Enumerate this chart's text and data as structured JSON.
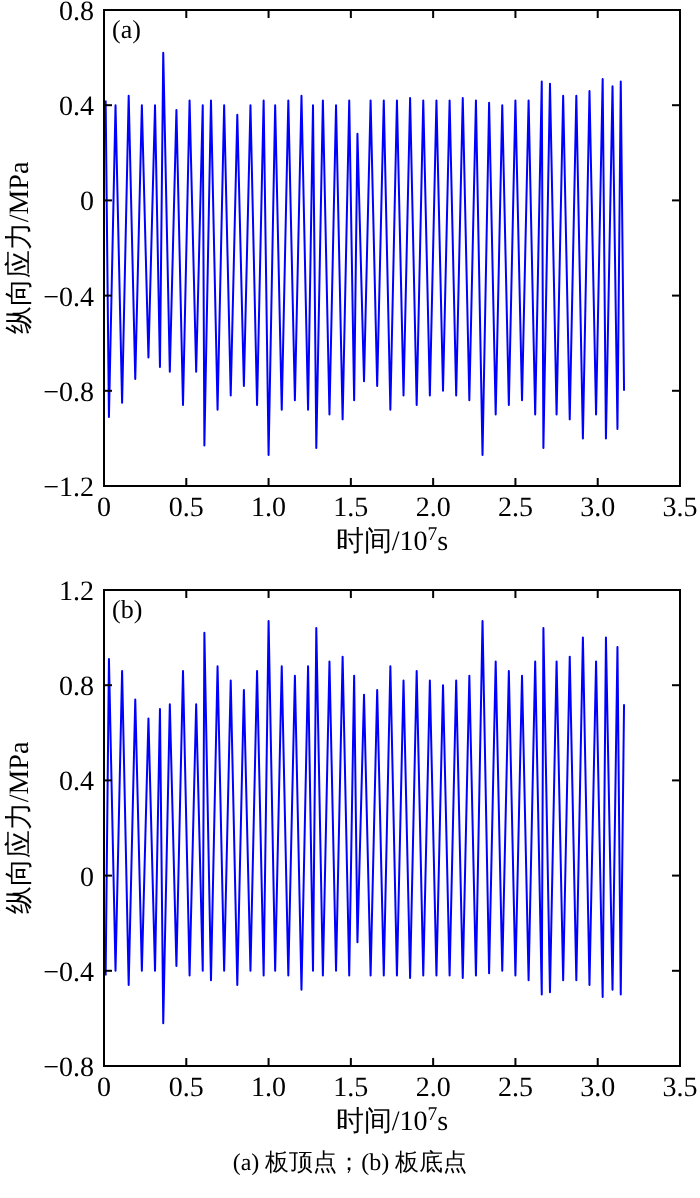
{
  "chart_data": [
    {
      "type": "line",
      "title": "(a)",
      "xlabel": "时间/10$^{7}$s",
      "ylabel": "纵向应力/MPa",
      "xlim": [
        0,
        3.5
      ],
      "xticks": [
        0,
        0.5,
        {
          "value": 1,
          "label": "1.0"
        },
        1.5,
        {
          "value": 2,
          "label": "2.0"
        },
        2.5,
        {
          "value": 3,
          "label": "3.0"
        },
        3.5
      ],
      "ylim": [
        -1.2,
        0.8
      ],
      "yticks": [
        {
          "value": -1.2,
          "label": "−1.2"
        },
        {
          "value": -0.8,
          "label": "−0.8"
        },
        {
          "value": -0.4,
          "label": "−0.4"
        },
        0,
        0.4,
        0.8
      ],
      "grid": false,
      "series": [
        {
          "color": "#0000ff",
          "x": [
            0.01,
            0.03,
            0.07,
            0.11,
            0.15,
            0.19,
            0.23,
            0.27,
            0.31,
            0.34,
            0.36,
            0.4,
            0.44,
            0.48,
            0.52,
            0.56,
            0.6,
            0.61,
            0.65,
            0.69,
            0.73,
            0.77,
            0.81,
            0.85,
            0.89,
            0.93,
            0.97,
            1.0,
            1.04,
            1.08,
            1.12,
            1.16,
            1.2,
            1.24,
            1.27,
            1.29,
            1.33,
            1.37,
            1.41,
            1.45,
            1.49,
            1.52,
            1.54,
            1.58,
            1.62,
            1.66,
            1.7,
            1.74,
            1.78,
            1.82,
            1.86,
            1.9,
            1.94,
            1.98,
            2.02,
            2.06,
            2.1,
            2.14,
            2.18,
            2.22,
            2.26,
            2.3,
            2.34,
            2.38,
            2.42,
            2.46,
            2.5,
            2.54,
            2.58,
            2.62,
            2.66,
            2.67,
            2.71,
            2.75,
            2.79,
            2.83,
            2.87,
            2.91,
            2.95,
            2.99,
            3.03,
            3.05,
            3.09,
            3.12,
            3.14,
            3.16
          ],
          "values": [
            0.42,
            -0.91,
            0.4,
            -0.85,
            0.44,
            -0.75,
            0.4,
            -0.66,
            0.4,
            -0.7,
            0.62,
            -0.72,
            0.38,
            -0.86,
            0.42,
            -0.72,
            0.4,
            -1.03,
            0.42,
            -0.88,
            0.4,
            -0.82,
            0.36,
            -0.78,
            0.4,
            -0.86,
            0.42,
            -1.07,
            0.4,
            -0.88,
            0.42,
            -0.84,
            0.44,
            -0.88,
            0.4,
            -1.04,
            0.42,
            -0.9,
            0.4,
            -0.92,
            0.42,
            -0.84,
            0.28,
            -0.76,
            0.42,
            -0.78,
            0.42,
            -0.88,
            0.42,
            -0.82,
            0.43,
            -0.86,
            0.42,
            -0.82,
            0.42,
            -0.8,
            0.42,
            -0.82,
            0.43,
            -0.84,
            0.42,
            -1.07,
            0.41,
            -0.9,
            0.4,
            -0.86,
            0.42,
            -0.84,
            0.42,
            -0.9,
            0.5,
            -1.04,
            0.49,
            -0.9,
            0.44,
            -0.92,
            0.44,
            -1.0,
            0.46,
            -0.9,
            0.51,
            -1.0,
            0.48,
            -0.96,
            0.5,
            -0.8
          ]
        }
      ]
    },
    {
      "type": "line",
      "title": "(b)",
      "xlabel": "时间/10$^{7}$s",
      "ylabel": "纵向应力/MPa",
      "xlim": [
        0,
        3.5
      ],
      "xticks": [
        0,
        0.5,
        {
          "value": 1,
          "label": "1.0"
        },
        1.5,
        {
          "value": 2,
          "label": "2.0"
        },
        2.5,
        {
          "value": 3,
          "label": "3.0"
        },
        3.5
      ],
      "ylim": [
        -0.8,
        1.2
      ],
      "yticks": [
        {
          "value": -0.8,
          "label": "−0.8"
        },
        {
          "value": -0.4,
          "label": "−0.4"
        },
        0,
        0.4,
        0.8,
        1.2
      ],
      "grid": false,
      "annotations": [
        "(a) 板顶点；(b) 板底点"
      ],
      "series": [
        {
          "color": "#0000ff",
          "x": [
            0.01,
            0.03,
            0.07,
            0.11,
            0.15,
            0.19,
            0.23,
            0.27,
            0.31,
            0.34,
            0.36,
            0.4,
            0.44,
            0.48,
            0.52,
            0.56,
            0.6,
            0.61,
            0.65,
            0.69,
            0.73,
            0.77,
            0.81,
            0.85,
            0.89,
            0.93,
            0.97,
            1.0,
            1.04,
            1.08,
            1.12,
            1.16,
            1.2,
            1.24,
            1.27,
            1.29,
            1.33,
            1.37,
            1.41,
            1.45,
            1.49,
            1.52,
            1.54,
            1.58,
            1.62,
            1.66,
            1.7,
            1.74,
            1.78,
            1.82,
            1.86,
            1.9,
            1.94,
            1.98,
            2.02,
            2.06,
            2.1,
            2.14,
            2.18,
            2.22,
            2.26,
            2.3,
            2.34,
            2.38,
            2.42,
            2.46,
            2.5,
            2.54,
            2.58,
            2.62,
            2.66,
            2.67,
            2.71,
            2.75,
            2.79,
            2.83,
            2.87,
            2.91,
            2.95,
            2.99,
            3.03,
            3.05,
            3.09,
            3.12,
            3.14,
            3.16
          ],
          "values": [
            -0.42,
            0.91,
            -0.4,
            0.86,
            -0.46,
            0.74,
            -0.4,
            0.66,
            -0.4,
            0.7,
            -0.62,
            0.72,
            -0.38,
            0.86,
            -0.42,
            0.72,
            -0.4,
            1.02,
            -0.44,
            0.88,
            -0.4,
            0.82,
            -0.46,
            0.78,
            -0.4,
            0.86,
            -0.42,
            1.07,
            -0.4,
            0.88,
            -0.42,
            0.84,
            -0.48,
            0.88,
            -0.4,
            1.04,
            -0.42,
            0.9,
            -0.4,
            0.92,
            -0.42,
            0.84,
            -0.28,
            0.76,
            -0.42,
            0.78,
            -0.42,
            0.88,
            -0.42,
            0.82,
            -0.43,
            0.86,
            -0.42,
            0.82,
            -0.42,
            0.8,
            -0.42,
            0.82,
            -0.43,
            0.84,
            -0.42,
            1.07,
            -0.41,
            0.9,
            -0.4,
            0.86,
            -0.42,
            0.84,
            -0.44,
            0.9,
            -0.5,
            1.04,
            -0.49,
            0.9,
            -0.44,
            0.92,
            -0.44,
            1.0,
            -0.46,
            0.9,
            -0.51,
            1.0,
            -0.48,
            0.96,
            -0.5,
            0.72
          ]
        }
      ]
    }
  ]
}
